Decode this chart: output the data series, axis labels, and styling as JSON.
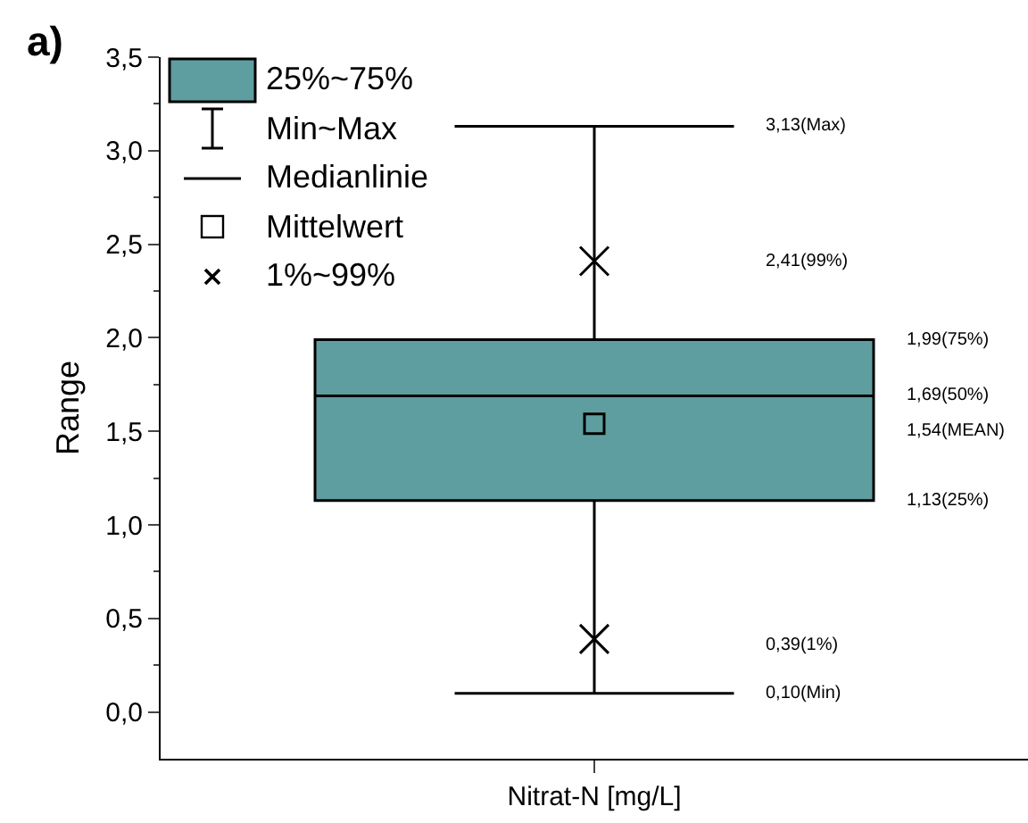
{
  "chart_data": {
    "type": "box",
    "ylabel": "Range",
    "categories": [
      "Nitrat-N [mg/L]"
    ],
    "ylim": [
      -0.25,
      3.5
    ],
    "yticks": [
      {
        "value": 0,
        "label": "0,0"
      },
      {
        "value": 0.5,
        "label": "0,5"
      },
      {
        "value": 1,
        "label": "1,0"
      },
      {
        "value": 1.5,
        "label": "1,5"
      },
      {
        "value": 2,
        "label": "2,0"
      },
      {
        "value": 2.5,
        "label": "2,5"
      },
      {
        "value": 3,
        "label": "3,0"
      },
      {
        "value": 3.5,
        "label": "3,5"
      }
    ],
    "series": [
      {
        "name": "25%~75%",
        "color": "#5f9ea0",
        "boxes": [
          {
            "low": 0.1,
            "q1": 1.13,
            "median": 1.69,
            "q3": 1.99,
            "high": 3.13
          }
        ]
      },
      {
        "type": "scatter",
        "name": "Mittelwert",
        "color": "#000000",
        "marker": "square",
        "x": [
          "Nitrat-N [mg/L]"
        ],
        "values": [
          1.54
        ]
      },
      {
        "type": "scatter",
        "name": "1%~99%",
        "color": "#000000",
        "marker": "cross",
        "x": [
          "Nitrat-N [mg/L]",
          "Nitrat-N [mg/L]"
        ],
        "values": [
          0.39,
          2.41
        ]
      }
    ],
    "grid": false,
    "legend": "top left",
    "annotations": [
      "a)",
      "Min~Max",
      "Medianlinie",
      "3,13(Max)",
      "2,41(99%)",
      "1,99(75%)",
      "1,69(50%)",
      "1,54(MEAN)",
      "1,13(25%)",
      "0,39(1%)",
      "0,10(Min)"
    ]
  }
}
